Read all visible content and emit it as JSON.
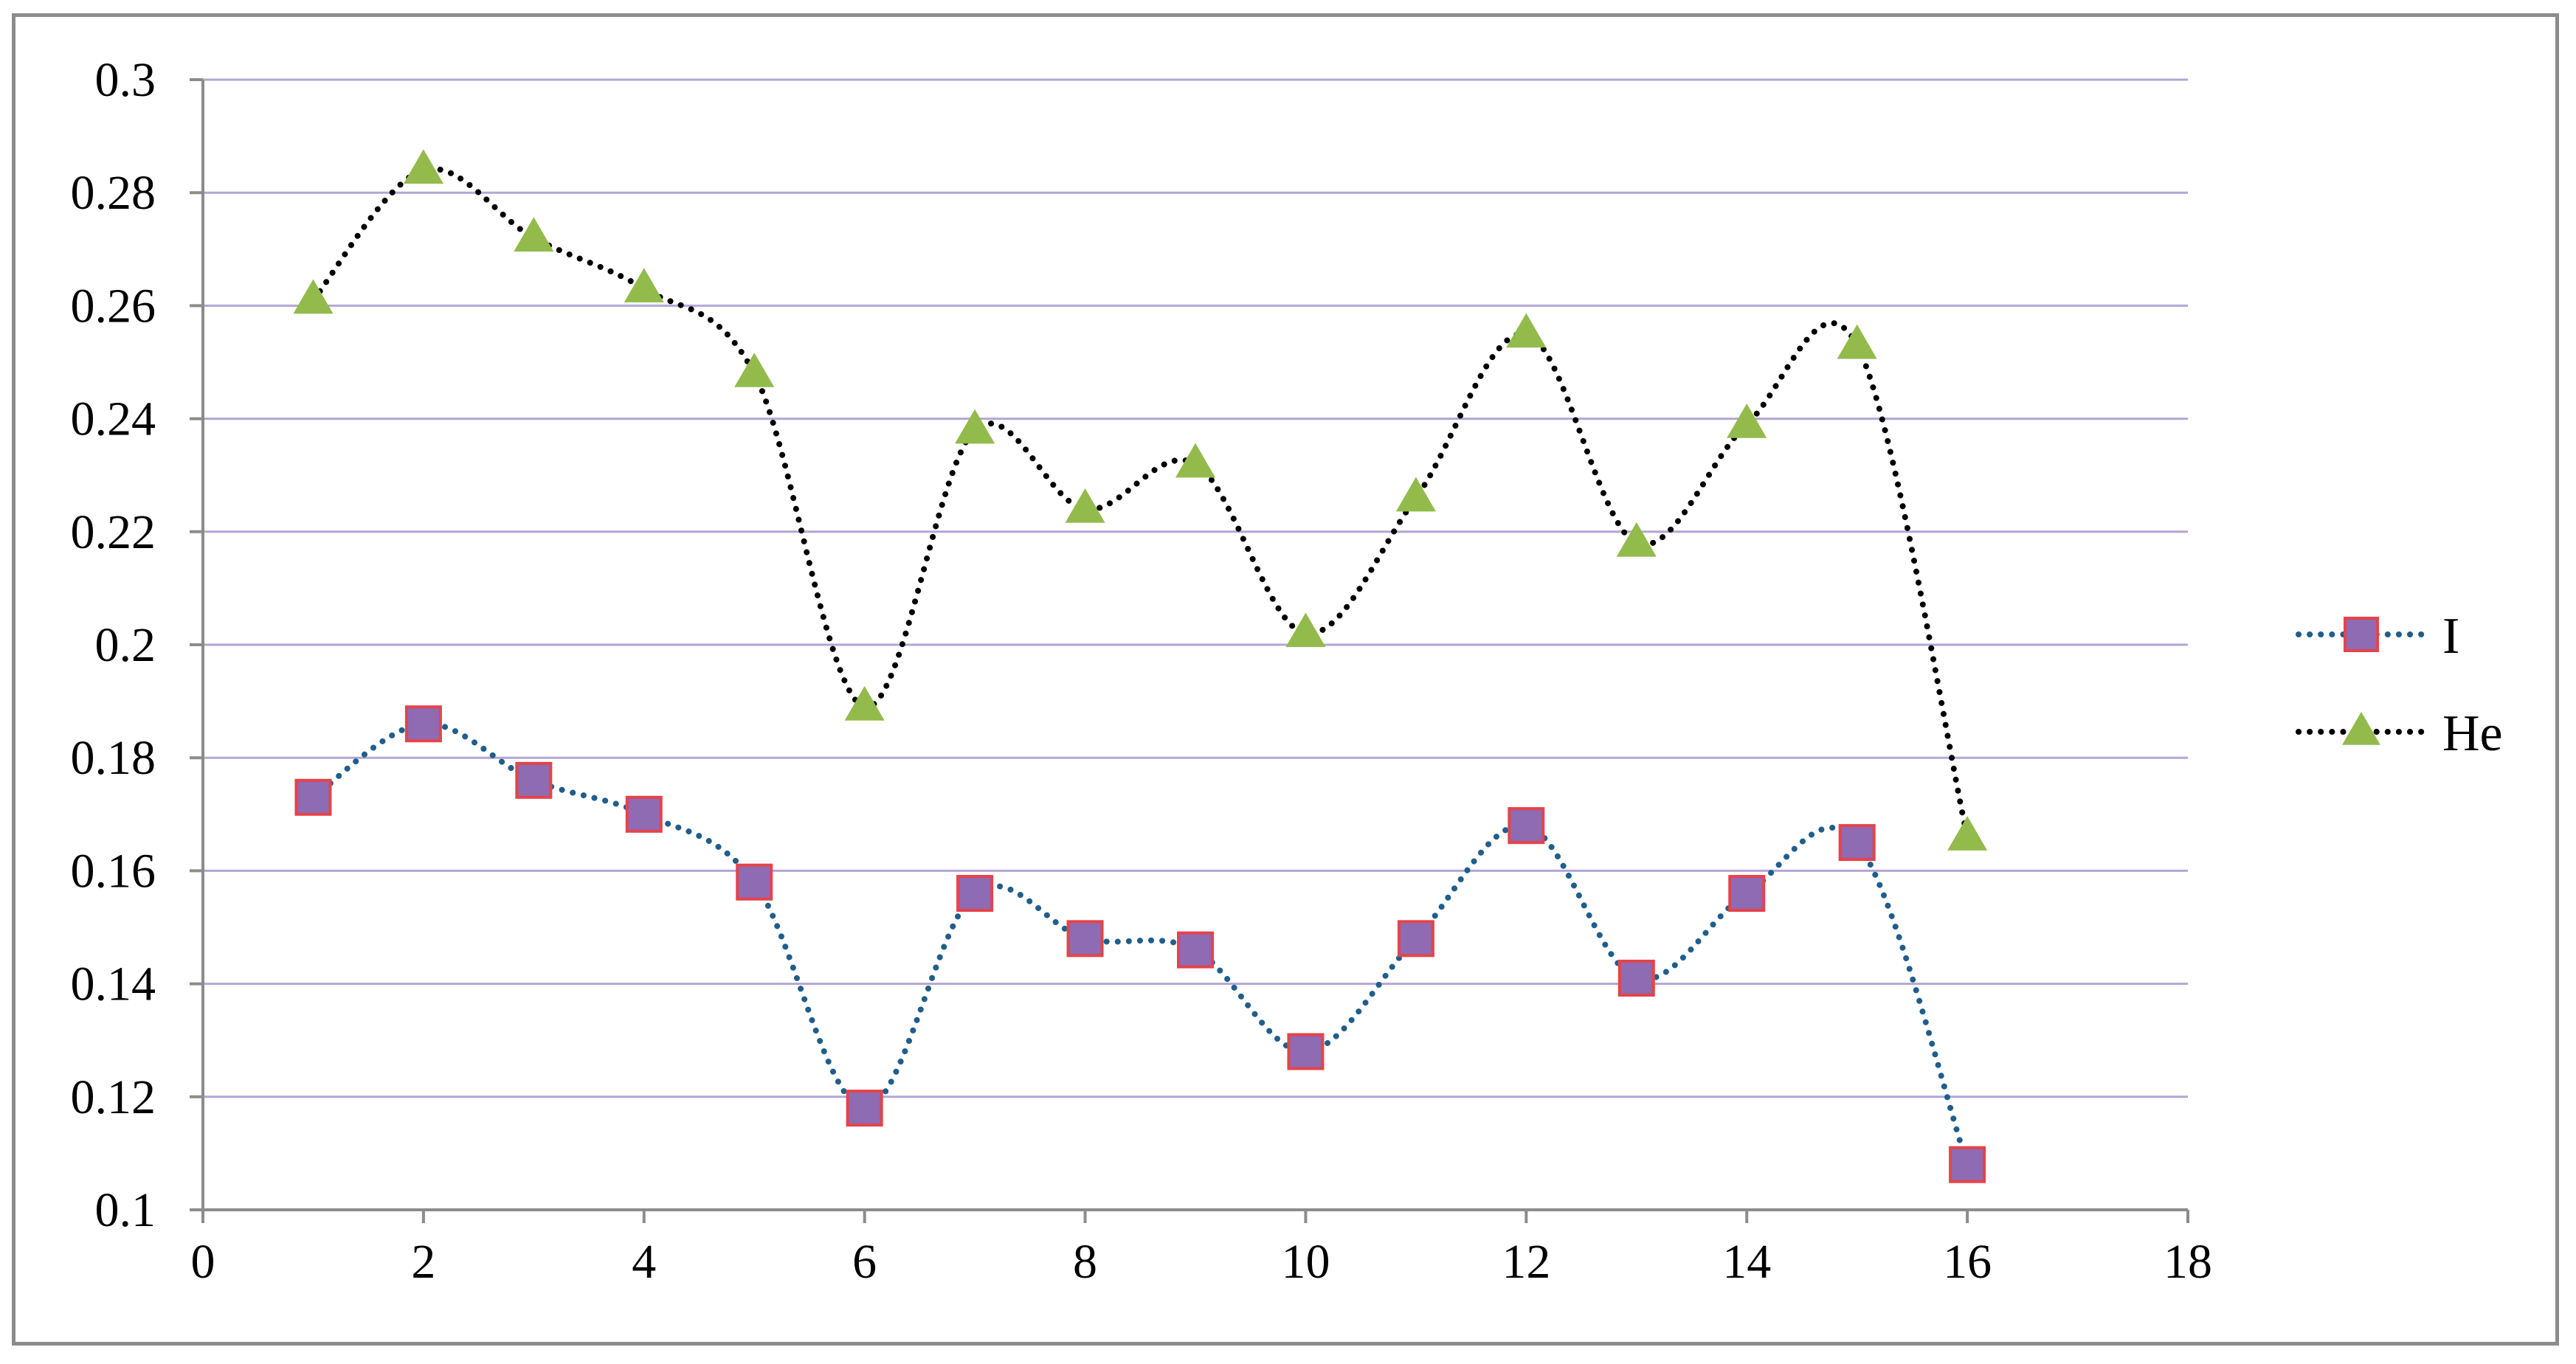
{
  "chart_data": {
    "type": "scatter",
    "title": "",
    "xlabel": "",
    "ylabel": "",
    "xlim": [
      0,
      18
    ],
    "ylim": [
      0.1,
      0.3
    ],
    "x_ticks": [
      0,
      2,
      4,
      6,
      8,
      10,
      12,
      14,
      16,
      18
    ],
    "y_ticks": [
      0.1,
      0.12,
      0.14,
      0.16,
      0.18,
      0.2,
      0.22,
      0.24,
      0.26,
      0.28,
      0.3
    ],
    "x_tick_labels": [
      "0",
      "2",
      "4",
      "6",
      "8",
      "10",
      "12",
      "14",
      "16",
      "18"
    ],
    "y_tick_labels": [
      "0.1",
      "0.12",
      "0.14",
      "0.16",
      "0.18",
      "0.2",
      "0.22",
      "0.24",
      "0.26",
      "0.28",
      "0.3"
    ],
    "grid": "horizontal",
    "legend_position": "right",
    "series": [
      {
        "name": "I",
        "marker": "square",
        "marker_fill": "#8e6bb3",
        "marker_edge": "#e5434a",
        "line_color": "#1f5e8c",
        "line_style": "dotted-smooth",
        "x": [
          1,
          2,
          3,
          4,
          5,
          6,
          7,
          8,
          9,
          10,
          11,
          12,
          13,
          14,
          15,
          16
        ],
        "y": [
          0.173,
          0.186,
          0.176,
          0.17,
          0.158,
          0.118,
          0.156,
          0.148,
          0.146,
          0.128,
          0.148,
          0.168,
          0.141,
          0.156,
          0.165,
          0.108
        ]
      },
      {
        "name": "He",
        "marker": "triangle",
        "marker_fill": "#92bb4c",
        "marker_edge": "#92bb4c",
        "line_color": "#000000",
        "line_style": "dotted-smooth",
        "x": [
          1,
          2,
          3,
          4,
          5,
          6,
          7,
          8,
          9,
          10,
          11,
          12,
          13,
          14,
          15,
          16
        ],
        "y": [
          0.261,
          0.284,
          0.272,
          0.263,
          0.248,
          0.189,
          0.238,
          0.224,
          0.232,
          0.202,
          0.226,
          0.255,
          0.218,
          0.239,
          0.253,
          0.166
        ]
      }
    ],
    "colors": {
      "grid": "#b3a6d6",
      "axis": "#8c8c8c"
    }
  }
}
